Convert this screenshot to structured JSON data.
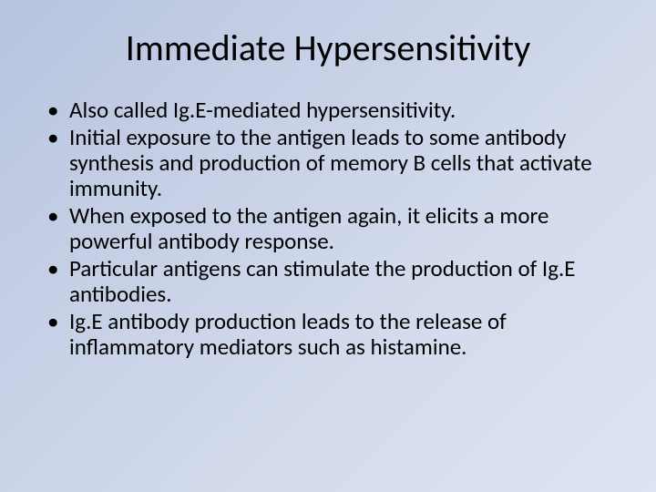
{
  "slide": {
    "title": "Immediate Hypersensitivity",
    "bullets": [
      "Also called Ig.E-mediated hypersensitivity.",
      "Initial exposure to the antigen leads to some antibody synthesis and production of memory B cells that activate immunity.",
      "When exposed to the antigen again, it elicits a more powerful antibody response.",
      "Particular antigens can stimulate the production of Ig.E antibodies.",
      "Ig.E antibody production leads to the release of inflammatory mediators such as histamine."
    ],
    "style": {
      "background_gradient": [
        "#b8c4e0",
        "#c5cfe5",
        "#d2daec",
        "#dde3f0"
      ],
      "title_color": "#000000",
      "title_fontsize": 40,
      "body_color": "#000000",
      "body_fontsize": 25,
      "font_family": "Calibri"
    }
  }
}
